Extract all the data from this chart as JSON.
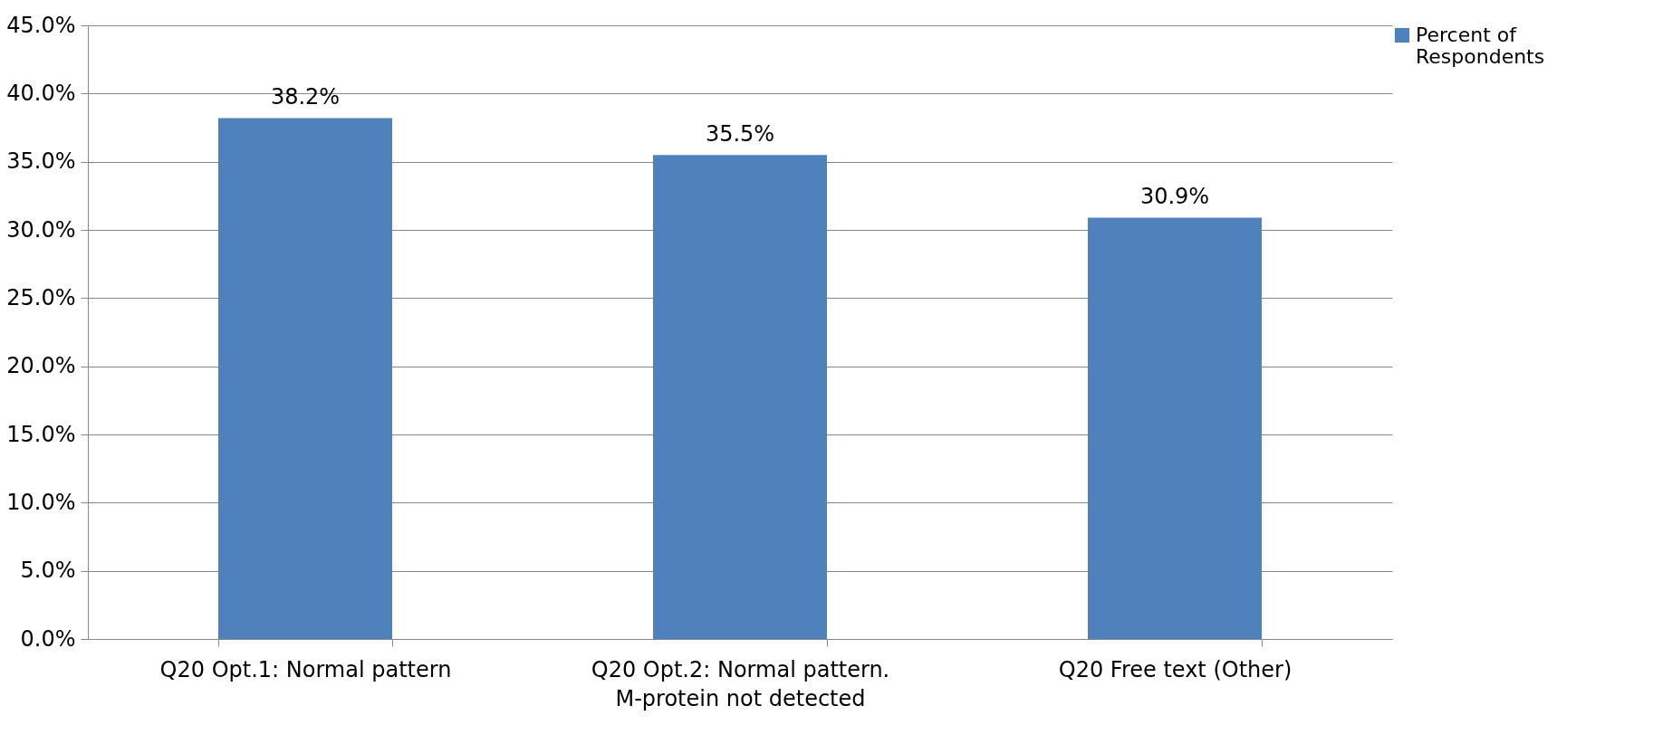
{
  "chart_data": {
    "type": "bar",
    "categories": [
      "Q20 Opt.1: Normal pattern",
      "Q20 Opt.2: Normal pattern. M-protein not detected",
      "Q20 Free text (Other)"
    ],
    "series": [
      {
        "name": "Percent of Respondents",
        "color": "#4f81bd",
        "values": [
          38.2,
          35.5,
          30.9
        ],
        "value_labels": [
          "38.2%",
          "35.5%",
          "30.9%"
        ]
      }
    ],
    "ylim": [
      0,
      45
    ],
    "yticks": [
      {
        "value": 0,
        "label": "0.0%"
      },
      {
        "value": 5,
        "label": "5.0%"
      },
      {
        "value": 10,
        "label": "10.0%"
      },
      {
        "value": 15,
        "label": "15.0%"
      },
      {
        "value": 20,
        "label": "20.0%"
      },
      {
        "value": 25,
        "label": "25.0%"
      },
      {
        "value": 30,
        "label": "30.0%"
      },
      {
        "value": 35,
        "label": "35.0%"
      },
      {
        "value": 40,
        "label": "40.0%"
      },
      {
        "value": 45,
        "label": "45.0%"
      }
    ],
    "grid": "y",
    "legend": "right"
  }
}
